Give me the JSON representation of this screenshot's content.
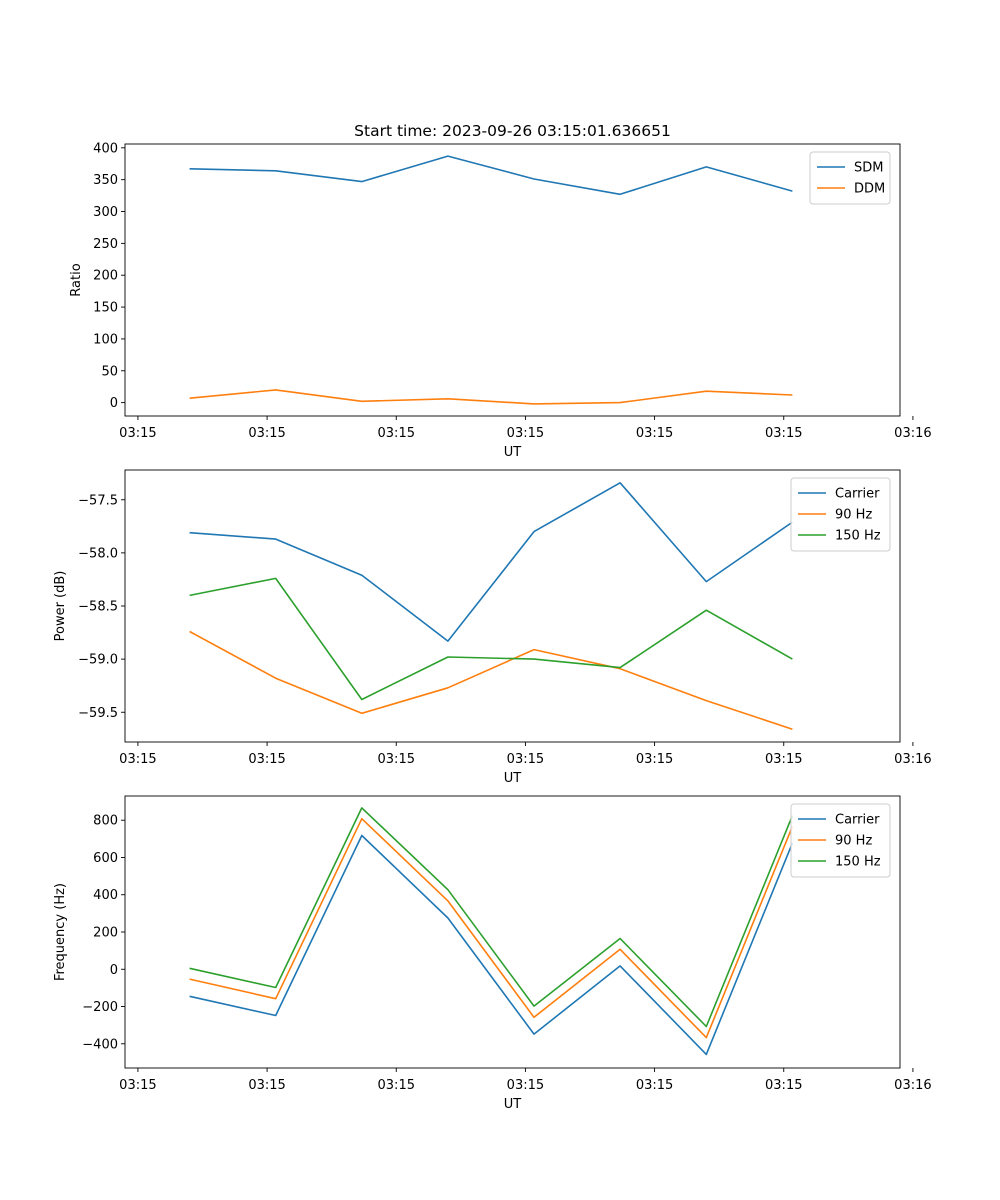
{
  "title": "Start time: 2023-09-26 03:15:01.636651",
  "chart_data": [
    {
      "type": "line",
      "ylabel": "Ratio",
      "xlabel": "UT",
      "x": [
        1,
        2,
        3,
        4,
        5,
        6,
        7,
        8
      ],
      "xlim": [
        0.25,
        9.25
      ],
      "xticks": [
        0.4,
        1.9,
        3.4,
        4.9,
        6.4,
        7.9,
        9.4
      ],
      "xticklabels": [
        "03:15",
        "03:15",
        "03:15",
        "03:15",
        "03:15",
        "03:15",
        "03:16"
      ],
      "ylim": [
        -21,
        406
      ],
      "yticks": [
        0,
        50,
        100,
        150,
        200,
        250,
        300,
        350,
        400
      ],
      "yticklabels": [
        "0",
        "50",
        "100",
        "150",
        "200",
        "250",
        "300",
        "350",
        "400"
      ],
      "legend_position": "top-right",
      "series": [
        {
          "name": "SDM",
          "color": "#1f77b4",
          "values": [
            367,
            364,
            347,
            387,
            351,
            327,
            370,
            332
          ]
        },
        {
          "name": "DDM",
          "color": "#ff7f0e",
          "values": [
            7,
            20,
            2,
            6,
            -2,
            0,
            18,
            12
          ]
        }
      ]
    },
    {
      "type": "line",
      "ylabel": "Power (dB)",
      "xlabel": "UT",
      "x": [
        1,
        2,
        3,
        4,
        5,
        6,
        7,
        8
      ],
      "xlim": [
        0.25,
        9.25
      ],
      "xticks": [
        0.4,
        1.9,
        3.4,
        4.9,
        6.4,
        7.9,
        9.4
      ],
      "xticklabels": [
        "03:15",
        "03:15",
        "03:15",
        "03:15",
        "03:15",
        "03:15",
        "03:16"
      ],
      "ylim": [
        -59.78,
        -57.22
      ],
      "yticks": [
        -59.5,
        -59.0,
        -58.5,
        -58.0,
        -57.5
      ],
      "yticklabels": [
        "−59.5",
        "−59.0",
        "−58.5",
        "−58.0",
        "−57.5"
      ],
      "legend_position": "top-right",
      "series": [
        {
          "name": "Carrier",
          "color": "#1f77b4",
          "values": [
            -57.81,
            -57.87,
            -58.21,
            -58.83,
            -57.8,
            -57.34,
            -58.27,
            -57.71
          ]
        },
        {
          "name": "90 Hz",
          "color": "#ff7f0e",
          "values": [
            -58.74,
            -59.18,
            -59.51,
            -59.27,
            -58.91,
            -59.09,
            -59.39,
            -59.66
          ]
        },
        {
          "name": "150 Hz",
          "color": "#2ca02c",
          "values": [
            -58.4,
            -58.24,
            -59.38,
            -58.98,
            -59.0,
            -59.08,
            -58.54,
            -59.0
          ]
        }
      ]
    },
    {
      "type": "line",
      "ylabel": "Frequency (Hz)",
      "xlabel": "UT",
      "x": [
        1,
        2,
        3,
        4,
        5,
        6,
        7,
        8
      ],
      "xlim": [
        0.25,
        9.25
      ],
      "xticks": [
        0.4,
        1.9,
        3.4,
        4.9,
        6.4,
        7.9,
        9.4
      ],
      "xticklabels": [
        "03:15",
        "03:15",
        "03:15",
        "03:15",
        "03:15",
        "03:15",
        "03:16"
      ],
      "ylim": [
        -530,
        930
      ],
      "yticks": [
        -400,
        -200,
        0,
        200,
        400,
        600,
        800
      ],
      "yticklabels": [
        "−400",
        "−200",
        "0",
        "200",
        "400",
        "600",
        "800"
      ],
      "legend_position": "top-right",
      "series": [
        {
          "name": "Carrier",
          "color": "#1f77b4",
          "values": [
            -145,
            -248,
            718,
            275,
            -348,
            18,
            -457,
            677
          ]
        },
        {
          "name": "90 Hz",
          "color": "#ff7f0e",
          "values": [
            -53,
            -158,
            808,
            367,
            -258,
            107,
            -367,
            767
          ]
        },
        {
          "name": "150 Hz",
          "color": "#2ca02c",
          "values": [
            5,
            -98,
            866,
            427,
            -198,
            165,
            -307,
            825
          ]
        }
      ]
    }
  ]
}
